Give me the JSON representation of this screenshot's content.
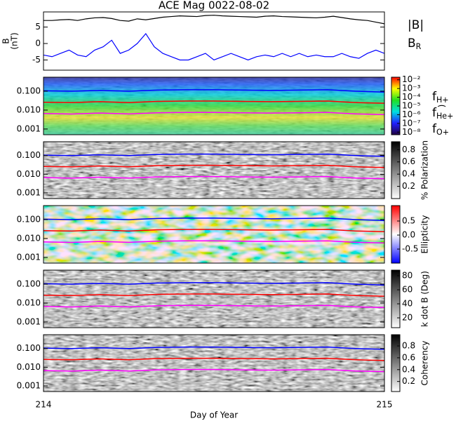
{
  "chart_data": {
    "title": "ACE Mag 0022-08-02",
    "xlabel": "Day of Year",
    "xlim": [
      214,
      215
    ],
    "xticks": [
      214,
      215
    ],
    "frequency_lines": {
      "x": [
        214,
        214.0833,
        214.1667,
        214.25,
        214.3333,
        214.4167,
        214.5,
        214.5833,
        214.6667,
        214.75,
        214.8333,
        214.9167,
        215
      ],
      "series": [
        {
          "name": "fH+",
          "color": "#0000ff",
          "values": [
            0.105,
            0.1,
            0.11,
            0.1,
            0.115,
            0.12,
            0.12,
            0.115,
            0.11,
            0.115,
            0.12,
            0.1,
            0.09
          ]
        },
        {
          "name": "fHe+",
          "color": "#ff0000",
          "values": [
            0.026,
            0.025,
            0.028,
            0.025,
            0.029,
            0.03,
            0.03,
            0.029,
            0.028,
            0.029,
            0.03,
            0.025,
            0.023
          ]
        },
        {
          "name": "fO+",
          "color": "#ff00ff",
          "values": [
            0.0066,
            0.0062,
            0.007,
            0.0063,
            0.0072,
            0.0075,
            0.0075,
            0.0072,
            0.007,
            0.0072,
            0.0075,
            0.0063,
            0.0058
          ]
        }
      ]
    },
    "panels": [
      {
        "type": "line",
        "ylabel": [
          "B",
          "(nT)"
        ],
        "ylim": [
          -8.1,
          9.6
        ],
        "yticks": [
          5,
          0,
          -5
        ],
        "x": [
          214,
          214.025,
          214.05,
          214.075,
          214.1,
          214.125,
          214.15,
          214.175,
          214.2,
          214.225,
          214.25,
          214.275,
          214.3,
          214.325,
          214.35,
          214.375,
          214.4,
          214.425,
          214.45,
          214.475,
          214.5,
          214.525,
          214.55,
          214.575,
          214.6,
          214.625,
          214.65,
          214.675,
          214.7,
          214.725,
          214.75,
          214.775,
          214.8,
          214.825,
          214.85,
          214.875,
          214.9,
          214.925,
          214.95,
          214.975,
          215
        ],
        "series": [
          {
            "name": "|B|",
            "color": "#000000",
            "values": [
              7,
              7,
              7.2,
              7.3,
              7,
              7.5,
              7.8,
              7.9,
              7.6,
              7,
              6.8,
              7.5,
              7.2,
              7.6,
              8,
              8.2,
              8.4,
              8.3,
              8.2,
              8.5,
              8.6,
              8.4,
              8.3,
              8.2,
              8.1,
              8,
              8.3,
              8.4,
              8.2,
              8.1,
              8,
              7.9,
              7.8,
              8,
              8.3,
              7.9,
              7.5,
              7.2,
              7,
              6.5,
              6
            ]
          },
          {
            "name": "BR",
            "color": "#0000ff",
            "values": [
              -3.5,
              -4,
              -3,
              -2,
              -3.5,
              -4,
              -2,
              -1,
              1,
              -3,
              -2,
              0,
              3,
              -1,
              -3,
              -4,
              -5,
              -5,
              -4,
              -3,
              -5,
              -4,
              -3,
              -4,
              -5,
              -4,
              -3.5,
              -4,
              -3,
              -4,
              -3,
              -4,
              -3.5,
              -4,
              -4,
              -3,
              -4,
              -4.5,
              -3,
              -2,
              -3
            ]
          }
        ]
      },
      {
        "type": "spectrogram",
        "style": "rainbow",
        "ylim": [
          0.0005,
          0.55
        ],
        "log": true,
        "yticks": [
          {
            "value": 0.1,
            "label": "0.100"
          },
          {
            "value": 0.01,
            "label": "0.010"
          },
          {
            "value": 0.001,
            "label": "0.001"
          }
        ],
        "colorbar": {
          "log": true,
          "clim": [
            5e-09,
            0.02
          ],
          "label": ")",
          "ticks": [
            {
              "value": 0.01,
              "label": "10⁻²"
            },
            {
              "value": 0.001,
              "label": "10⁻³"
            },
            {
              "value": 0.0001,
              "label": "10⁻⁴"
            },
            {
              "value": 1e-05,
              "label": "10⁻⁵"
            },
            {
              "value": 1e-06,
              "label": "10⁻⁶"
            },
            {
              "value": 1e-07,
              "label": "10⁻⁷"
            },
            {
              "value": 1e-08,
              "label": "10⁻⁸"
            }
          ]
        }
      },
      {
        "type": "spectrogram",
        "style": "gray",
        "ylim": [
          0.0005,
          0.55
        ],
        "log": true,
        "yticks": [
          {
            "value": 0.1,
            "label": "0.100"
          },
          {
            "value": 0.01,
            "label": "0.010"
          },
          {
            "value": 0.001,
            "label": "0.001"
          }
        ],
        "colorbar": {
          "clim": [
            0,
            0.93
          ],
          "label": "% Polarization",
          "ticks": [
            0.8,
            0.6,
            0.4,
            0.2
          ]
        }
      },
      {
        "type": "spectrogram",
        "style": "redblue",
        "ylim": [
          0.0005,
          0.55
        ],
        "log": true,
        "yticks": [
          {
            "value": 0.1,
            "label": "0.100"
          },
          {
            "value": 0.01,
            "label": "0.010"
          },
          {
            "value": 0.001,
            "label": "0.001"
          }
        ],
        "colorbar": {
          "clim": [
            -1,
            1.05
          ],
          "label": "Ellipticity",
          "ticks": [
            0.5,
            {
              "value": 0,
              "label": "0.0"
            },
            -0.5
          ]
        }
      },
      {
        "type": "spectrogram",
        "style": "gray",
        "ylim": [
          0.0005,
          0.55
        ],
        "log": true,
        "yticks": [
          {
            "value": 0.1,
            "label": "0.100"
          },
          {
            "value": 0.01,
            "label": "0.010"
          },
          {
            "value": 0.001,
            "label": "0.001"
          }
        ],
        "colorbar": {
          "clim": [
            6,
            88
          ],
          "label": "k dot B (Deg)",
          "ticks": [
            80,
            60,
            40,
            20
          ]
        }
      },
      {
        "type": "spectrogram",
        "style": "gray",
        "ylim": [
          0.0005,
          0.55
        ],
        "log": true,
        "yticks": [
          {
            "value": 0.1,
            "label": "0.100"
          },
          {
            "value": 0.01,
            "label": "0.010"
          },
          {
            "value": 0.001,
            "label": "0.001"
          }
        ],
        "colorbar": {
          "clim": [
            0.03,
            0.99
          ],
          "label": "Coherency",
          "ticks": [
            0.8,
            0.6,
            0.4,
            0.2
          ]
        }
      }
    ]
  }
}
